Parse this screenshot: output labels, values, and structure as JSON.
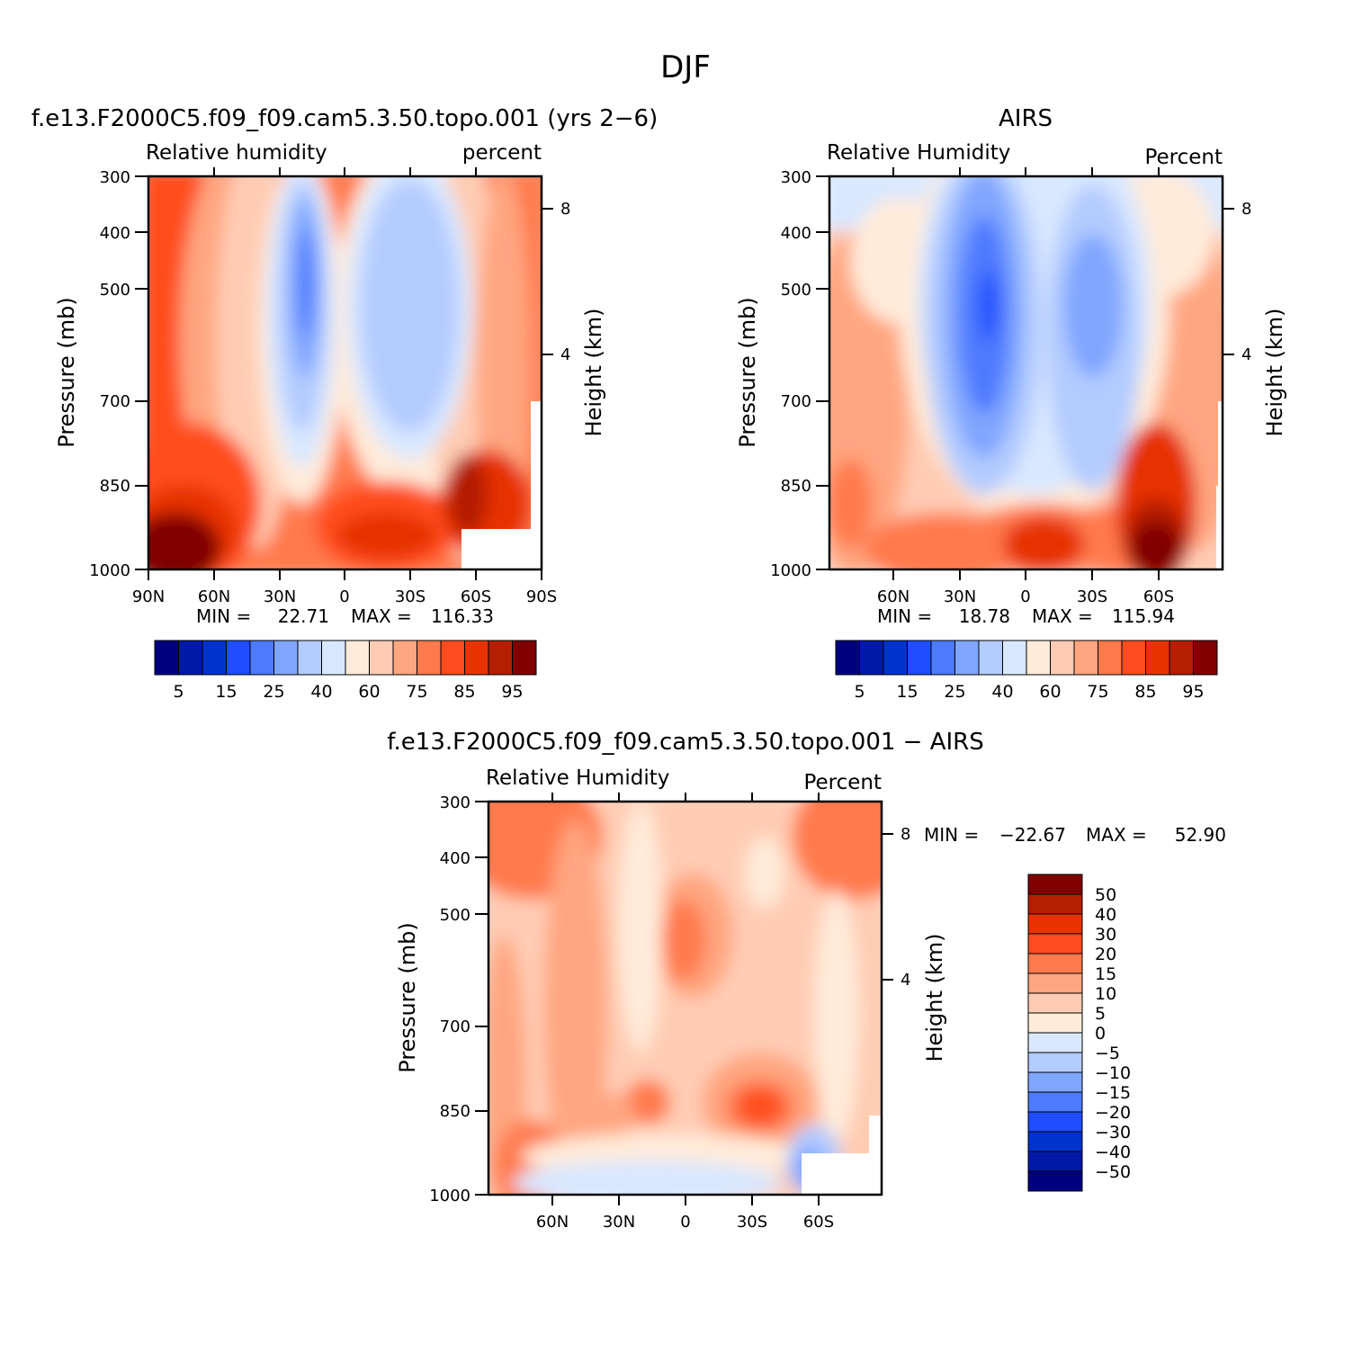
{
  "figure": {
    "title": "DJF"
  },
  "chart_data": [
    {
      "type": "heatmap",
      "title": "f.e13.F2000C5.f09_f09.cam5.3.50.topo.001 (yrs 2−6)",
      "left_label": "Relative humidity",
      "right_label": "percent",
      "ylabel": "Pressure (mb)",
      "y2label": "Height (km)",
      "x_ticks": [
        "90N",
        "60N",
        "30N",
        "0",
        "30S",
        "60S",
        "90S"
      ],
      "xlim": [
        90,
        -90
      ],
      "y_ticks": [
        "300",
        "400",
        "500",
        "700",
        "850",
        "1000"
      ],
      "ylim": [
        1000,
        300
      ],
      "y_scale": "log",
      "y2_ticks": [
        "8",
        "4"
      ],
      "min_label": "MIN =",
      "min_value": "22.71",
      "max_label": "MAX =",
      "max_value": "116.33",
      "colorbar": {
        "orientation": "horizontal",
        "colors": [
          "#00007f",
          "#0019a8",
          "#0033cc",
          "#1f4dff",
          "#4d7aff",
          "#80a6ff",
          "#b3ccff",
          "#d9e8ff",
          "#ffebd9",
          "#ffccb3",
          "#ffa680",
          "#ff7a4d",
          "#ff4d1f",
          "#e63300",
          "#b31f00",
          "#800000"
        ],
        "labels": [
          "5",
          "15",
          "25",
          "40",
          "60",
          "75",
          "85",
          "95"
        ]
      }
    },
    {
      "type": "heatmap",
      "title": "AIRS",
      "left_label": "Relative Humidity",
      "right_label": "Percent",
      "ylabel": "Pressure (mb)",
      "y2label": "Height (km)",
      "x_ticks": [
        "60N",
        "30N",
        "0",
        "30S",
        "60S"
      ],
      "y_ticks": [
        "300",
        "400",
        "500",
        "700",
        "850",
        "1000"
      ],
      "ylim": [
        1000,
        300
      ],
      "y_scale": "log",
      "y2_ticks": [
        "8",
        "4"
      ],
      "min_label": "MIN =",
      "min_value": "18.78",
      "max_label": "MAX =",
      "max_value": "115.94",
      "colorbar": {
        "orientation": "horizontal",
        "colors": [
          "#00007f",
          "#0019a8",
          "#0033cc",
          "#1f4dff",
          "#4d7aff",
          "#80a6ff",
          "#b3ccff",
          "#d9e8ff",
          "#ffebd9",
          "#ffccb3",
          "#ffa680",
          "#ff7a4d",
          "#ff4d1f",
          "#e63300",
          "#b31f00",
          "#800000"
        ],
        "labels": [
          "5",
          "15",
          "25",
          "40",
          "60",
          "75",
          "85",
          "95"
        ]
      }
    },
    {
      "type": "heatmap",
      "title": "f.e13.F2000C5.f09_f09.cam5.3.50.topo.001 − AIRS",
      "left_label": "Relative Humidity",
      "right_label": "Percent",
      "ylabel": "Pressure (mb)",
      "y2label": "Height (km)",
      "x_ticks": [
        "60N",
        "30N",
        "0",
        "30S",
        "60S"
      ],
      "y_ticks": [
        "300",
        "400",
        "500",
        "700",
        "850",
        "1000"
      ],
      "ylim": [
        1000,
        300
      ],
      "y_scale": "log",
      "y2_ticks": [
        "8",
        "4"
      ],
      "min_label": "MIN =",
      "min_value": "−22.67",
      "max_label": "MAX =",
      "max_value": "52.90",
      "colorbar": {
        "orientation": "vertical",
        "colors": [
          "#800000",
          "#b31f00",
          "#e63300",
          "#ff4d1f",
          "#ff7a4d",
          "#ffa680",
          "#ffccb3",
          "#ffebd9",
          "#d9e8ff",
          "#b3ccff",
          "#80a6ff",
          "#4d7aff",
          "#1f4dff",
          "#0033cc",
          "#0019a8",
          "#00007f"
        ],
        "labels": [
          "50",
          "40",
          "30",
          "20",
          "15",
          "10",
          "5",
          "0",
          "−5",
          "−10",
          "−15",
          "−20",
          "−30",
          "−40",
          "−50"
        ]
      }
    }
  ]
}
